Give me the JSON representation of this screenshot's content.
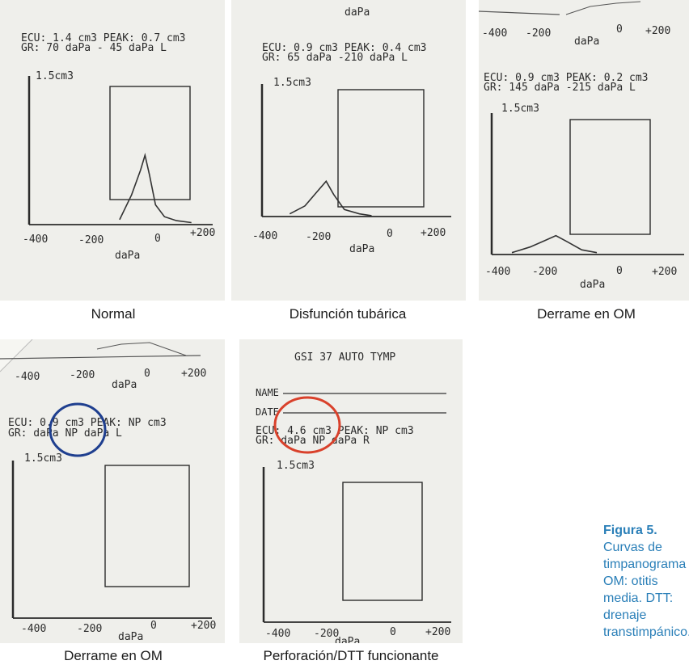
{
  "x_axis": {
    "ticks": [
      "-400",
      "-200",
      "0",
      "+200"
    ],
    "label": "daPa"
  },
  "panels": [
    {
      "caption": "Normal",
      "header": "",
      "line1": "ECU: 1.4 cm3  PEAK: 0.7 cm3",
      "line2": "GR:  70 daPa   - 45 daPa  L",
      "ymax": "1.5cm3",
      "chart_data": {
        "type": "line",
        "title": "",
        "xlabel": "daPa",
        "ylabel": "1.5cm3",
        "xlim": [
          -420,
          240
        ],
        "ylim": [
          0,
          1.5
        ],
        "x": [
          -130,
          -90,
          -60,
          -45,
          -30,
          -10,
          20,
          60,
          110
        ],
        "y": [
          0.05,
          0.3,
          0.55,
          0.7,
          0.5,
          0.2,
          0.08,
          0.04,
          0.02
        ]
      }
    },
    {
      "caption": "Disfunción tubárica",
      "header": "daPa",
      "line1": "ECU: 0.9 cm3  PEAK: 0.4 cm3",
      "line2": "GR:  65 daPa   -210 daPa  L",
      "ymax": "1.5cm3",
      "chart_data": {
        "type": "line",
        "title": "",
        "xlabel": "daPa",
        "ylabel": "1.5cm3",
        "xlim": [
          -420,
          240
        ],
        "ylim": [
          0,
          1.5
        ],
        "x": [
          -330,
          -280,
          -240,
          -210,
          -185,
          -150,
          -100,
          -60
        ],
        "y": [
          0.03,
          0.12,
          0.28,
          0.4,
          0.25,
          0.08,
          0.03,
          0.01
        ]
      }
    },
    {
      "caption": "Derrame en OM",
      "header": "",
      "line1": "ECU: 0.9 cm3  PEAK: 0.2 cm3",
      "line2": "GR: 145 daPa  -215 daPa  L",
      "ymax": "1.5cm3",
      "chart_data": {
        "type": "line",
        "title": "",
        "xlabel": "daPa",
        "ylabel": "1.5cm3",
        "xlim": [
          -420,
          240
        ],
        "ylim": [
          0,
          1.5
        ],
        "x": [
          -360,
          -300,
          -250,
          -215,
          -180,
          -130,
          -80
        ],
        "y": [
          0.02,
          0.08,
          0.15,
          0.2,
          0.14,
          0.05,
          0.02
        ]
      }
    },
    {
      "caption": "Derrame en OM",
      "header": "",
      "line1": "ECU: 0.9 cm3  PEAK:  NP cm3",
      "line2": "GR:     daPa     NP daPa  L",
      "ymax": "1.5cm3",
      "chart_data": {
        "type": "line",
        "title": "",
        "xlabel": "daPa",
        "ylabel": "1.5cm3",
        "xlim": [
          -420,
          240
        ],
        "ylim": [
          0,
          1.5
        ],
        "x": [],
        "y": []
      }
    },
    {
      "caption": "Perforación/DTT funcionante",
      "header": "GSI 37  AUTO TYMP",
      "name_label": "NAME",
      "date_label": "DATE",
      "line1": "ECU: 4.6 cm3  PEAK:  NP cm3",
      "line2": "GR:     daPa     NP daPa  R",
      "ymax": "1.5cm3",
      "chart_data": {
        "type": "line",
        "title": "",
        "xlabel": "daPa",
        "ylabel": "1.5cm3",
        "xlim": [
          -420,
          240
        ],
        "ylim": [
          0,
          1.5
        ],
        "x": [],
        "y": []
      }
    }
  ],
  "figure_caption": {
    "label": "Figura 5.",
    "text": "Curvas de timpanograma OM: otitis media. DTT: drenaje transtimpánico."
  },
  "colors": {
    "blue_circle": "#1f3f8f",
    "red_circle": "#d9412b",
    "caption_blue": "#2a7fb8"
  }
}
